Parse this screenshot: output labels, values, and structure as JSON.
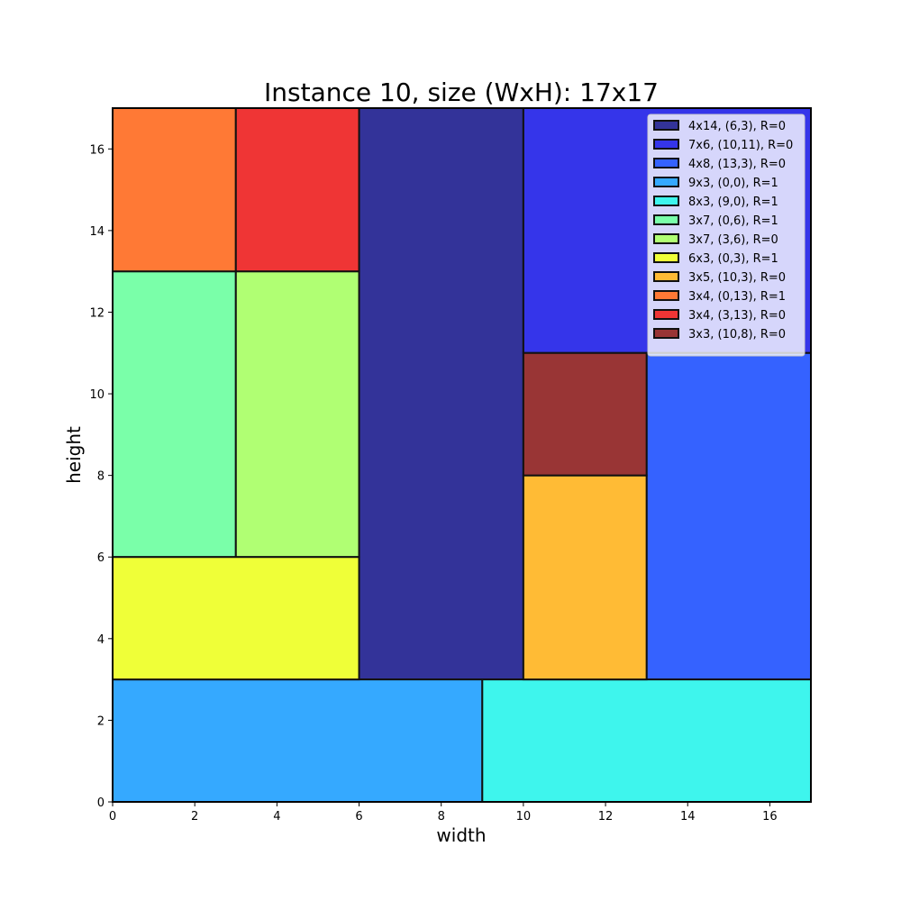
{
  "chart_data": {
    "type": "rectangle-packing",
    "title": "Instance 10, size (WxH): 17x17",
    "xlabel": "width",
    "ylabel": "height",
    "xlim": [
      0,
      17
    ],
    "ylim": [
      0,
      17
    ],
    "xticks": [
      0,
      2,
      4,
      6,
      8,
      10,
      12,
      14,
      16
    ],
    "yticks": [
      0,
      2,
      4,
      6,
      8,
      10,
      12,
      14,
      16
    ],
    "grid": false,
    "legend_position": "top-right",
    "rectangles": [
      {
        "label": "4x14, (6,3), R=0",
        "x": 6,
        "y": 3,
        "w": 4,
        "h": 14,
        "color": "#333399"
      },
      {
        "label": "7x6, (10,11), R=0",
        "x": 10,
        "y": 11,
        "w": 7,
        "h": 6,
        "color": "#3535ea"
      },
      {
        "label": "4x8, (13,3), R=0",
        "x": 13,
        "y": 3,
        "w": 4,
        "h": 8,
        "color": "#3562ff"
      },
      {
        "label": "9x3, (0,0), R=1",
        "x": 0,
        "y": 0,
        "w": 9,
        "h": 3,
        "color": "#35a9ff"
      },
      {
        "label": "8x3, (9,0), R=1",
        "x": 9,
        "y": 0,
        "w": 8,
        "h": 3,
        "color": "#3ef5ed"
      },
      {
        "label": "3x7, (0,6), R=1",
        "x": 0,
        "y": 6,
        "w": 3,
        "h": 7,
        "color": "#7affa9"
      },
      {
        "label": "3x7, (3,6), R=0",
        "x": 3,
        "y": 6,
        "w": 3,
        "h": 7,
        "color": "#b0ff73"
      },
      {
        "label": "6x3, (0,3), R=1",
        "x": 0,
        "y": 3,
        "w": 6,
        "h": 3,
        "color": "#efff38"
      },
      {
        "label": "3x5, (10,3), R=0",
        "x": 10,
        "y": 3,
        "w": 3,
        "h": 5,
        "color": "#ffbb35"
      },
      {
        "label": "3x4, (0,13), R=1",
        "x": 0,
        "y": 13,
        "w": 3,
        "h": 4,
        "color": "#ff7935"
      },
      {
        "label": "3x4, (3,13), R=0",
        "x": 3,
        "y": 13,
        "w": 3,
        "h": 4,
        "color": "#ef3535"
      },
      {
        "label": "3x3, (10,8), R=0",
        "x": 10,
        "y": 8,
        "w": 3,
        "h": 3,
        "color": "#993535"
      }
    ]
  }
}
